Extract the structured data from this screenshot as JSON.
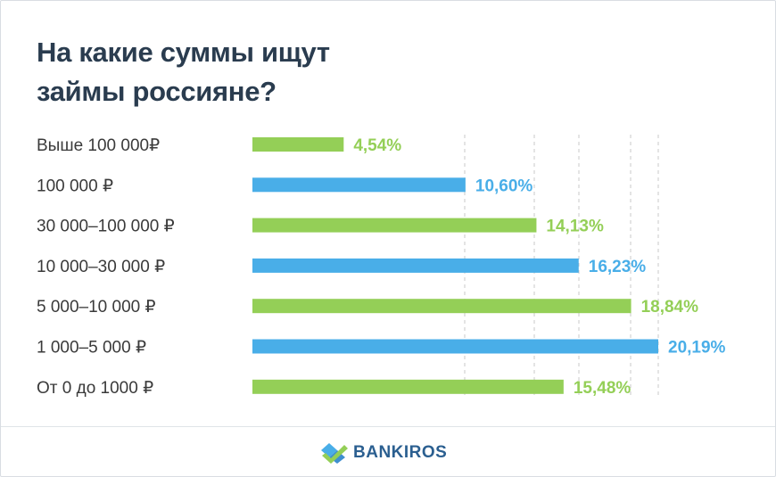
{
  "title": {
    "line1": "На какие суммы ищут",
    "line2": "займы россияне?"
  },
  "brand": {
    "name": "BANKIROS"
  },
  "colors": {
    "green": "#94cf57",
    "blue": "#49aee8",
    "title": "#2a3c4f",
    "label": "#3a3a3a",
    "grid": "#c9c9c9"
  },
  "chart_data": {
    "type": "bar",
    "orientation": "horizontal",
    "categories": [
      "Выше 100 000₽",
      "100 000 ₽",
      "30 000–100 000 ₽",
      "10 000–30 000 ₽",
      "5 000–10 000 ₽",
      "1 000–5 000 ₽",
      "От 0 до 1000 ₽"
    ],
    "values": [
      4.54,
      10.6,
      14.13,
      16.23,
      18.84,
      20.19,
      15.48
    ],
    "value_labels": [
      "4,54%",
      "10,60%",
      "14,13%",
      "16,23%",
      "18,84%",
      "20,19%",
      "15,48%"
    ],
    "bar_colors": [
      "green",
      "blue",
      "green",
      "blue",
      "green",
      "blue",
      "green"
    ],
    "xlim": [
      0,
      20.19
    ],
    "grid": "vertical-dashed",
    "legend": "none"
  }
}
